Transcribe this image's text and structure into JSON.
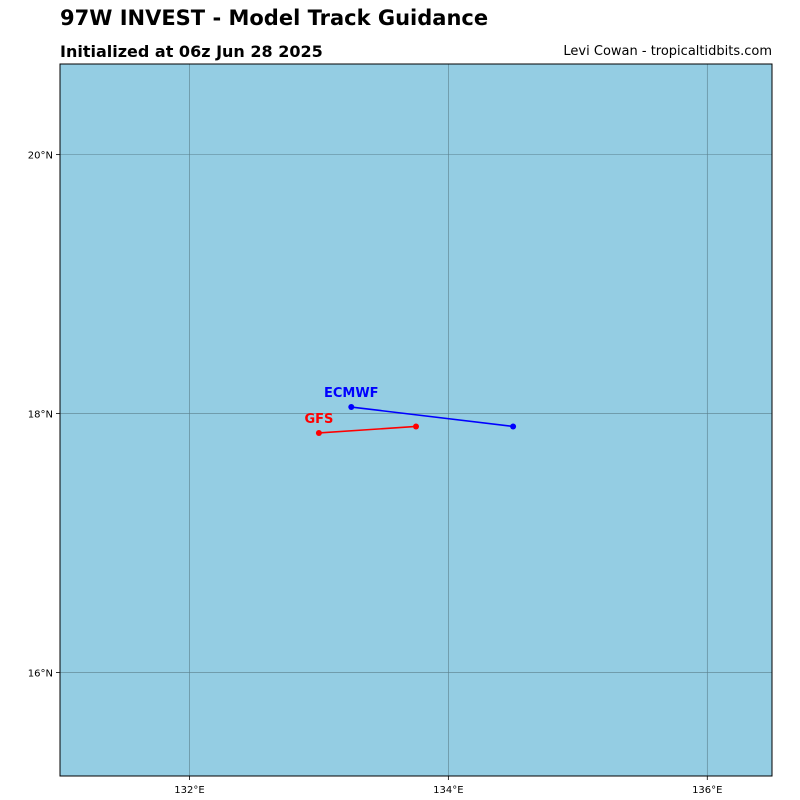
{
  "header": {
    "title": "97W INVEST - Model Track Guidance",
    "subtitle": "Initialized at 06z Jun 28 2025",
    "credit": "Levi Cowan - tropicaltidbits.com"
  },
  "map": {
    "ocean_color": "#94cde3",
    "grid_color": "#5a7f8c",
    "lon_range": [
      131.0,
      136.5
    ],
    "lat_range": [
      15.2,
      20.7
    ],
    "lon_ticks": [
      {
        "value": 132,
        "label": "132°E"
      },
      {
        "value": 134,
        "label": "134°E"
      },
      {
        "value": 136,
        "label": "136°E"
      }
    ],
    "lat_ticks": [
      {
        "value": 16,
        "label": "16°N"
      },
      {
        "value": 18,
        "label": "18°N"
      },
      {
        "value": 20,
        "label": "20°N"
      }
    ]
  },
  "tracks": [
    {
      "model": "ECMWF",
      "color": "#0000ff",
      "points": [
        {
          "lon": 134.5,
          "lat": 17.9
        },
        {
          "lon": 133.25,
          "lat": 18.05
        }
      ]
    },
    {
      "model": "GFS",
      "color": "#ff0000",
      "points": [
        {
          "lon": 133.75,
          "lat": 17.9
        },
        {
          "lon": 133.0,
          "lat": 17.85
        }
      ]
    }
  ]
}
